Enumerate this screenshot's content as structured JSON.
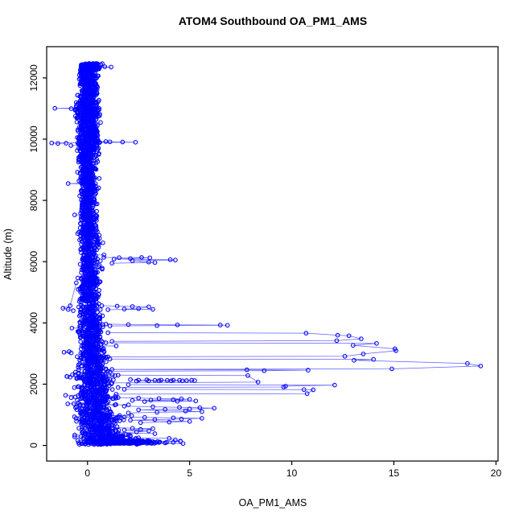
{
  "chart_data": {
    "type": "scatter",
    "title": "ATOM4 Southbound OA_PM1_AMS",
    "xlabel": "OA_PM1_AMS",
    "ylabel": "Altitude (m)",
    "x_ticks": [
      0,
      5,
      10,
      15,
      20
    ],
    "y_ticks": [
      0,
      2000,
      4000,
      6000,
      8000,
      10000,
      12000
    ],
    "x_range": [
      -2.0,
      20.1
    ],
    "y_range": [
      -510,
      13020
    ],
    "grid": false,
    "legend": null,
    "marker": "open-circle",
    "marker_radius": 2.3,
    "point_color": "#0000ff",
    "line_color": "#2a2aff",
    "axis_color": "#000000",
    "background": "#ffffff",
    "seed": 20174,
    "description": "Vertical aircraft profile: dense column of organic aerosol values near 0 ug/m3 from 0 to ~12450 m altitude, with pollution-layer excursions below ~6200 m reaching a maximum of ~19.3 at ~2600 m.",
    "dense_band_segments": [
      {
        "alt": [
          12280,
          12470
        ],
        "center": 0.1,
        "spread": 0.3,
        "n": 190
      },
      {
        "alt": [
          11300,
          12280
        ],
        "center": 0.05,
        "spread": 0.3,
        "n": 310
      },
      {
        "alt": [
          10500,
          11300
        ],
        "center": 0.0,
        "spread": 0.4,
        "n": 250
      },
      {
        "alt": [
          9500,
          10500
        ],
        "center": 0.05,
        "spread": 0.35,
        "n": 280
      },
      {
        "alt": [
          8300,
          9500
        ],
        "center": 0.0,
        "spread": 0.3,
        "n": 260
      },
      {
        "alt": [
          7000,
          8300
        ],
        "center": 0.05,
        "spread": 0.28,
        "n": 240
      },
      {
        "alt": [
          5600,
          7000
        ],
        "center": 0.1,
        "spread": 0.32,
        "n": 250
      },
      {
        "alt": [
          4300,
          5600
        ],
        "center": 0.1,
        "spread": 0.34,
        "n": 230
      },
      {
        "alt": [
          3300,
          4300
        ],
        "center": 0.15,
        "spread": 0.4,
        "n": 210
      },
      {
        "alt": [
          2400,
          3300
        ],
        "center": 0.2,
        "spread": 0.45,
        "n": 200
      },
      {
        "alt": [
          1600,
          2400
        ],
        "center": 0.35,
        "spread": 0.6,
        "n": 210
      },
      {
        "alt": [
          900,
          1600
        ],
        "center": 0.45,
        "spread": 0.65,
        "n": 190
      },
      {
        "alt": [
          350,
          900
        ],
        "center": 0.55,
        "spread": 0.7,
        "n": 170
      },
      {
        "alt": [
          30,
          350
        ],
        "center": 0.9,
        "spread": 0.9,
        "n": 200
      },
      {
        "alt": [
          60,
          160
        ],
        "center": 1.8,
        "spread": 1.1,
        "n": 220
      }
    ],
    "excursions": [
      [
        [
          0.4,
          12355
        ],
        [
          0.85,
          12362
        ],
        [
          1.15,
          12352
        ],
        [
          0.6,
          12342
        ]
      ],
      [
        [
          -0.45,
          11015
        ],
        [
          -1.6,
          11008
        ],
        [
          -0.8,
          10998
        ]
      ],
      [
        [
          0.5,
          9918
        ],
        [
          1.1,
          9912
        ],
        [
          1.72,
          9906
        ],
        [
          2.35,
          9900
        ],
        [
          0.6,
          9892
        ]
      ],
      [
        [
          -0.4,
          9882
        ],
        [
          -1.75,
          9874
        ],
        [
          -1.45,
          9862
        ],
        [
          -1.05,
          9868
        ]
      ],
      [
        [
          -0.3,
          8562
        ],
        [
          -0.95,
          8550
        ],
        [
          -0.2,
          8538
        ]
      ],
      [
        [
          0.8,
          6140
        ],
        [
          1.55,
          6132
        ],
        [
          2.65,
          6136
        ],
        [
          3.05,
          6126
        ],
        [
          2.1,
          6100
        ],
        [
          1.3,
          6088
        ],
        [
          4.05,
          6066
        ],
        [
          4.3,
          6054
        ],
        [
          2.2,
          6030
        ],
        [
          3.0,
          5986
        ],
        [
          3.3,
          5974
        ],
        [
          1.2,
          5950
        ]
      ],
      [
        [
          -0.55,
          5310
        ],
        [
          -0.85,
          4560
        ],
        [
          -1.2,
          4480
        ],
        [
          -0.95,
          4440
        ],
        [
          -0.7,
          4400
        ]
      ],
      [
        [
          0.7,
          4562
        ],
        [
          1.45,
          4548
        ],
        [
          2.2,
          4536
        ],
        [
          3.0,
          4526
        ],
        [
          2.5,
          4466
        ],
        [
          1.8,
          4454
        ],
        [
          3.2,
          4444
        ],
        [
          1.0,
          4432
        ]
      ],
      [
        [
          0.9,
          3962
        ],
        [
          2.0,
          3946
        ],
        [
          4.4,
          3936
        ],
        [
          6.5,
          3930
        ],
        [
          6.85,
          3922
        ],
        [
          3.4,
          3912
        ],
        [
          1.1,
          3900
        ]
      ],
      [
        [
          1.0,
          3680
        ],
        [
          10.7,
          3664
        ],
        [
          12.25,
          3600
        ],
        [
          12.8,
          3580
        ],
        [
          13.4,
          3480
        ],
        [
          12.2,
          3420
        ],
        [
          1.2,
          3398
        ]
      ],
      [
        [
          0.9,
          3352
        ],
        [
          14.15,
          3330
        ],
        [
          13.0,
          3268
        ],
        [
          15.05,
          3156
        ],
        [
          15.1,
          3092
        ],
        [
          13.5,
          2986
        ],
        [
          12.6,
          2912
        ],
        [
          1.0,
          2892
        ]
      ],
      [
        [
          -0.9,
          3062
        ],
        [
          -1.15,
          3042
        ],
        [
          -0.8,
          3022
        ]
      ],
      [
        [
          1.1,
          2822
        ],
        [
          14.0,
          2810
        ],
        [
          13.05,
          2780
        ],
        [
          18.6,
          2676
        ],
        [
          19.25,
          2592
        ],
        [
          14.9,
          2500
        ],
        [
          1.2,
          2482
        ]
      ],
      [
        [
          0.9,
          2476
        ],
        [
          7.8,
          2470
        ],
        [
          10.8,
          2456
        ],
        [
          8.65,
          2440
        ],
        [
          1.0,
          2422
        ]
      ],
      [
        [
          1.5,
          2292
        ],
        [
          7.85,
          2280
        ],
        [
          8.35,
          2066
        ],
        [
          1.2,
          2042
        ]
      ],
      [
        [
          -1.0,
          2252
        ],
        [
          -0.85,
          2230
        ]
      ],
      [
        [
          2.1,
          2148
        ],
        [
          2.5,
          2132
        ],
        [
          2.9,
          2140
        ],
        [
          3.3,
          2126
        ],
        [
          3.6,
          2134
        ],
        [
          3.9,
          2122
        ],
        [
          4.2,
          2130
        ],
        [
          4.5,
          2124
        ],
        [
          4.85,
          2118
        ],
        [
          5.1,
          2128
        ],
        [
          5.25,
          2116
        ],
        [
          4.65,
          2112
        ],
        [
          4.1,
          2108
        ],
        [
          3.5,
          2114
        ],
        [
          3.0,
          2106
        ],
        [
          2.4,
          2102
        ]
      ],
      [
        [
          2.0,
          1982
        ],
        [
          12.1,
          1970
        ],
        [
          9.7,
          1932
        ],
        [
          9.6,
          1906
        ],
        [
          1.5,
          1890
        ]
      ],
      [
        [
          1.8,
          1832
        ],
        [
          10.6,
          1822
        ],
        [
          11.05,
          1816
        ],
        [
          10.75,
          1692
        ],
        [
          1.4,
          1672
        ]
      ],
      [
        [
          -0.6,
          1582
        ],
        [
          -0.8,
          1560
        ]
      ],
      [
        [
          1.5,
          1562
        ],
        [
          2.5,
          1546
        ],
        [
          3.5,
          1532
        ],
        [
          4.6,
          1520
        ],
        [
          5.0,
          1506
        ],
        [
          4.2,
          1492
        ],
        [
          3.1,
          1482
        ],
        [
          2.2,
          1472
        ],
        [
          5.3,
          1452
        ],
        [
          4.4,
          1442
        ],
        [
          2.8,
          1432
        ]
      ],
      [
        [
          1.8,
          1282
        ],
        [
          3.2,
          1262
        ],
        [
          4.5,
          1242
        ],
        [
          5.5,
          1230
        ],
        [
          6.2,
          1216
        ],
        [
          5.0,
          1192
        ],
        [
          3.8,
          1176
        ],
        [
          2.5,
          1162
        ],
        [
          4.8,
          1122
        ],
        [
          5.6,
          1102
        ],
        [
          3.4,
          1082
        ],
        [
          2.0,
          1062
        ]
      ],
      [
        [
          1.5,
          932
        ],
        [
          2.8,
          916
        ],
        [
          4.2,
          902
        ],
        [
          5.6,
          886
        ],
        [
          4.6,
          862
        ],
        [
          3.3,
          842
        ],
        [
          2.1,
          822
        ],
        [
          5.0,
          782
        ],
        [
          4.0,
          762
        ],
        [
          2.6,
          742
        ]
      ],
      [
        [
          1.2,
          582
        ],
        [
          2.2,
          562
        ],
        [
          3.2,
          546
        ],
        [
          2.6,
          522
        ],
        [
          1.8,
          502
        ],
        [
          3.0,
          472
        ],
        [
          2.4,
          442
        ],
        [
          1.5,
          412
        ],
        [
          3.3,
          382
        ]
      ],
      [
        [
          2.5,
          250
        ],
        [
          4.0,
          230
        ],
        [
          4.3,
          182
        ],
        [
          4.55,
          142
        ],
        [
          4.2,
          102
        ],
        [
          3.8,
          82
        ],
        [
          2.9,
          70
        ]
      ]
    ]
  }
}
